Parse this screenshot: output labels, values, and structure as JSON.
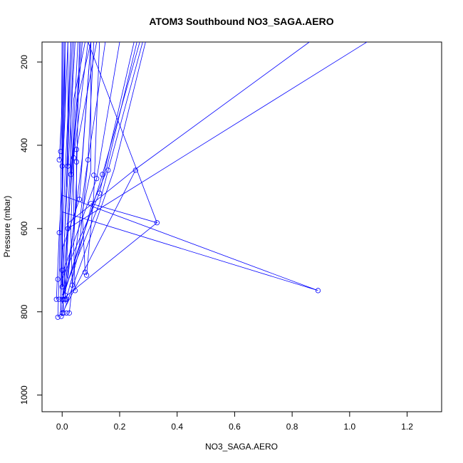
{
  "chart_data": {
    "type": "line",
    "title": "ATOM3 Southbound NO3_SAGA.AERO",
    "xlabel": "NO3_SAGA.AERO",
    "ylabel": "Pressure (mbar)",
    "xlim": [
      -0.07,
      1.32
    ],
    "ylim": [
      1040,
      152
    ],
    "y_reversed": true,
    "grid": false,
    "legend": "none",
    "x_ticks": [
      0.0,
      0.2,
      0.4,
      0.6,
      0.8,
      1.0,
      1.2
    ],
    "x_tick_labels": [
      "0.0",
      "0.2",
      "0.4",
      "0.6",
      "0.8",
      "1.0",
      "1.2"
    ],
    "y_ticks": [
      200,
      400,
      600,
      800,
      1000
    ],
    "y_tick_labels": [
      "200",
      "400",
      "600",
      "800",
      "1000"
    ],
    "color": "#0000ff",
    "series": [
      {
        "points": [
          [
            0.0,
            810
          ],
          [
            0.01,
            700
          ],
          [
            0.02,
            560
          ],
          [
            0.03,
            420
          ],
          [
            0.04,
            290
          ],
          [
            0.08,
            152
          ]
        ]
      },
      {
        "points": [
          [
            -0.005,
            800
          ],
          [
            0.0,
            640
          ],
          [
            0.01,
            470
          ],
          [
            0.02,
            330
          ],
          [
            0.03,
            152
          ]
        ]
      },
      {
        "points": [
          [
            0.01,
            770
          ],
          [
            0.02,
            620
          ],
          [
            0.03,
            480
          ],
          [
            0.05,
            300
          ],
          [
            0.1,
            152
          ]
        ]
      },
      {
        "points": [
          [
            0.0,
            740
          ],
          [
            0.0,
            560
          ],
          [
            0.005,
            400
          ],
          [
            0.01,
            152
          ]
        ]
      },
      {
        "points": [
          [
            0.025,
            803
          ],
          [
            0.05,
            640
          ],
          [
            0.08,
            480
          ],
          [
            0.12,
            300
          ],
          [
            0.15,
            152
          ]
        ]
      },
      {
        "points": [
          [
            -0.003,
            811
          ],
          [
            -0.005,
            700
          ],
          [
            0.0,
            520
          ],
          [
            0.0,
            420
          ],
          [
            0.01,
            152
          ]
        ]
      },
      {
        "points": [
          [
            0.01,
            760
          ],
          [
            0.04,
            600
          ],
          [
            0.07,
            430
          ],
          [
            0.1,
            152
          ]
        ]
      },
      {
        "points": [
          [
            0.0,
            770
          ],
          [
            0.1,
            560
          ],
          [
            0.14,
            470
          ],
          [
            0.27,
            152
          ]
        ]
      },
      {
        "points": [
          [
            0.0,
            760
          ],
          [
            0.13,
            540
          ],
          [
            0.16,
            460
          ],
          [
            0.28,
            152
          ]
        ]
      },
      {
        "points": [
          [
            0.005,
            800
          ],
          [
            0.14,
            540
          ],
          [
            0.18,
            460
          ],
          [
            0.29,
            152
          ]
        ]
      },
      {
        "points": [
          [
            0.01,
            780
          ],
          [
            0.1,
            550
          ],
          [
            0.15,
            470
          ],
          [
            0.26,
            152
          ]
        ]
      },
      {
        "points": [
          [
            0.0,
            720
          ],
          [
            0.13,
            515
          ],
          [
            0.25,
            152
          ]
        ]
      },
      {
        "points": [
          [
            0.0,
            710
          ],
          [
            0.12,
            480
          ],
          [
            0.2,
            152
          ]
        ]
      },
      {
        "points": [
          [
            0.0,
            650
          ],
          [
            0.06,
            530
          ],
          [
            0.1,
            152
          ]
        ]
      },
      {
        "points": [
          [
            0.01,
            790
          ],
          [
            0.255,
            460
          ]
        ]
      },
      {
        "points": [
          [
            0.02,
            600
          ],
          [
            1.06,
            152
          ]
        ]
      },
      {
        "points": [
          [
            0.015,
            590
          ],
          [
            0.25,
            460
          ],
          [
            0.86,
            152
          ]
        ]
      },
      {
        "points": [
          [
            0.0,
            520
          ],
          [
            0.89,
            749
          ],
          [
            0.0,
            560
          ]
        ]
      },
      {
        "points": [
          [
            0.1,
            540
          ],
          [
            0.33,
            586
          ],
          [
            0.0,
            770
          ]
        ]
      },
      {
        "points": [
          [
            0.09,
            152
          ],
          [
            0.33,
            586
          ]
        ]
      },
      {
        "points": [
          [
            0.08,
            705
          ],
          [
            0.07,
            560
          ],
          [
            0.1,
            460
          ],
          [
            0.1,
            152
          ]
        ]
      },
      {
        "points": [
          [
            0.085,
            712
          ],
          [
            0.11,
            520
          ],
          [
            0.13,
            152
          ]
        ]
      },
      {
        "points": [
          [
            0.045,
            749
          ],
          [
            0.04,
            640
          ],
          [
            0.05,
            480
          ],
          [
            0.06,
            152
          ]
        ]
      },
      {
        "points": [
          [
            0.035,
            736
          ],
          [
            0.03,
            600
          ],
          [
            0.04,
            420
          ],
          [
            0.07,
            152
          ]
        ]
      },
      {
        "points": [
          [
            0.01,
            740
          ],
          [
            0.0,
            610
          ],
          [
            0.0,
            480
          ],
          [
            0.02,
            152
          ]
        ]
      },
      {
        "points": [
          [
            0.005,
            803
          ],
          [
            0.0,
            700
          ],
          [
            0.0,
            600
          ],
          [
            0.005,
            152
          ]
        ]
      },
      {
        "points": [
          [
            -0.02,
            770
          ],
          [
            -0.01,
            610
          ],
          [
            0.0,
            500
          ],
          [
            0.0,
            152
          ]
        ]
      },
      {
        "points": [
          [
            -0.015,
            813
          ],
          [
            -0.01,
            700
          ],
          [
            -0.005,
            540
          ],
          [
            0.0,
            152
          ]
        ]
      },
      {
        "points": [
          [
            0.0,
            770
          ],
          [
            0.06,
            640
          ],
          [
            0.09,
            435
          ],
          [
            0.11,
            152
          ]
        ]
      },
      {
        "points": [
          [
            0.02,
            720
          ],
          [
            0.05,
            530
          ],
          [
            0.05,
            410
          ],
          [
            0.12,
            152
          ]
        ]
      },
      {
        "points": [
          [
            0.0,
            780
          ],
          [
            0.04,
            600
          ],
          [
            0.04,
            430
          ],
          [
            0.09,
            152
          ]
        ]
      },
      {
        "points": [
          [
            -0.01,
            435
          ],
          [
            0.0,
            300
          ],
          [
            0.0,
            152
          ]
        ]
      },
      {
        "points": [
          [
            0.0,
            470
          ],
          [
            0.01,
            330
          ],
          [
            0.01,
            152
          ]
        ]
      },
      {
        "points": [
          [
            0.03,
            470
          ],
          [
            0.03,
            330
          ],
          [
            0.04,
            152
          ]
        ]
      },
      {
        "points": [
          [
            0.02,
            450
          ],
          [
            0.02,
            152
          ]
        ]
      },
      {
        "points": [
          [
            0.015,
            500
          ],
          [
            0.035,
            152
          ]
        ]
      },
      {
        "points": [
          [
            0.025,
            560
          ],
          [
            0.055,
            152
          ]
        ]
      },
      {
        "points": [
          [
            0.008,
            620
          ],
          [
            0.045,
            152
          ]
        ]
      },
      {
        "points": [
          [
            0.012,
            680
          ],
          [
            0.065,
            152
          ]
        ]
      },
      {
        "points": [
          [
            0.003,
            740
          ],
          [
            0.03,
            152
          ]
        ]
      }
    ],
    "markers": [
      [
        -0.015,
        813
      ],
      [
        -0.003,
        811
      ],
      [
        0.0,
        803
      ],
      [
        0.005,
        803
      ],
      [
        0.025,
        803
      ],
      [
        0.015,
        803
      ],
      [
        -0.02,
        770
      ],
      [
        -0.01,
        770
      ],
      [
        0.0,
        770
      ],
      [
        0.005,
        770
      ],
      [
        0.01,
        770
      ],
      [
        0.015,
        770
      ],
      [
        0.01,
        760
      ],
      [
        0.0,
        740
      ],
      [
        0.035,
        736
      ],
      [
        0.045,
        749
      ],
      [
        0.89,
        749
      ],
      [
        -0.015,
        722
      ],
      [
        0.08,
        705
      ],
      [
        0.085,
        712
      ],
      [
        0.0,
        700
      ],
      [
        -0.01,
        610
      ],
      [
        0.02,
        600
      ],
      [
        0.33,
        586
      ],
      [
        0.06,
        530
      ],
      [
        0.1,
        540
      ],
      [
        0.03,
        470
      ],
      [
        0.11,
        472
      ],
      [
        0.12,
        480
      ],
      [
        0.13,
        515
      ],
      [
        0.14,
        470
      ],
      [
        0.16,
        460
      ],
      [
        0.255,
        460
      ],
      [
        0.09,
        435
      ],
      [
        0.04,
        430
      ],
      [
        0.05,
        440
      ],
      [
        -0.01,
        435
      ],
      [
        -0.005,
        415
      ],
      [
        0.05,
        410
      ],
      [
        0.0,
        450
      ],
      [
        0.02,
        450
      ]
    ]
  }
}
